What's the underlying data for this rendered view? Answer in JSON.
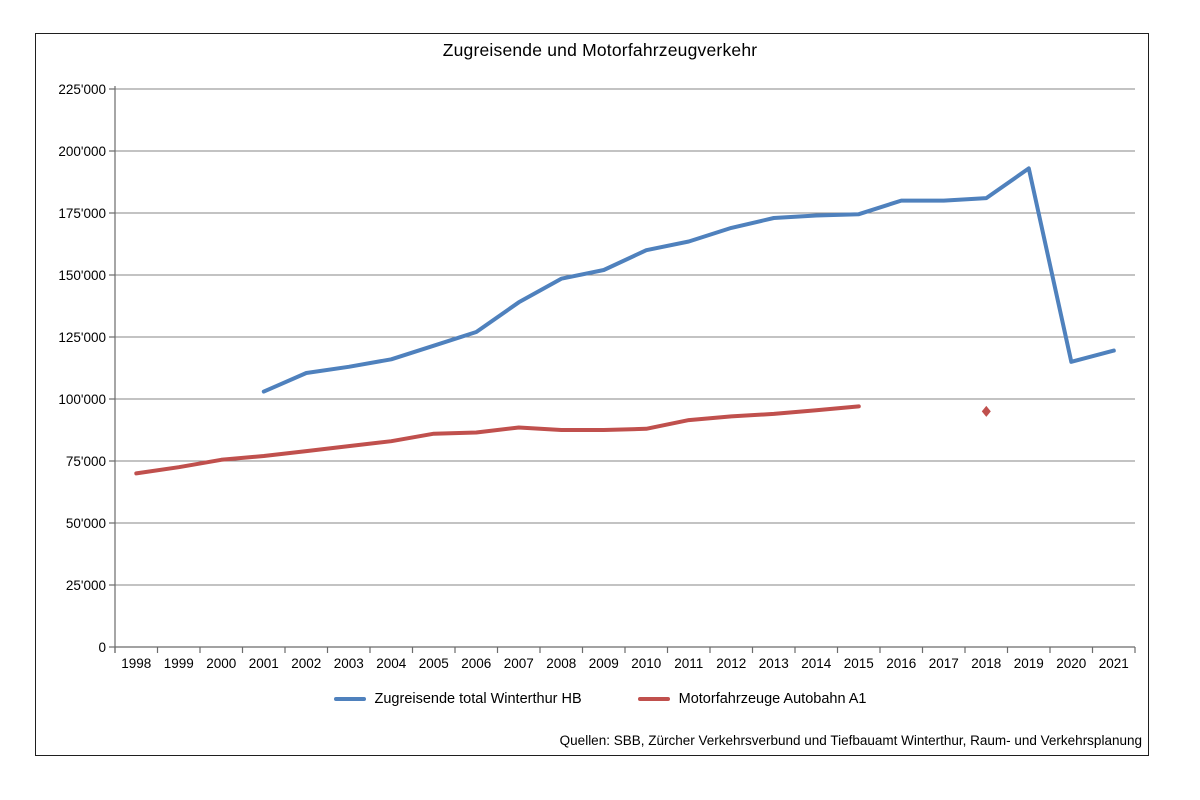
{
  "title": "Zugreisende und Motorfahrzeugverkehr",
  "source_note": "Quellen: SBB, Zürcher Verkehrsverbund und Tiefbauamt Winterthur, Raum- und Verkehrsplanung",
  "chart_data": {
    "type": "line",
    "title": "Zugreisende und Motorfahrzeugverkehr",
    "categories": [
      "1998",
      "1999",
      "2000",
      "2001",
      "2002",
      "2003",
      "2004",
      "2005",
      "2006",
      "2007",
      "2008",
      "2009",
      "2010",
      "2011",
      "2012",
      "2013",
      "2014",
      "2015",
      "2016",
      "2017",
      "2018",
      "2019",
      "2020",
      "2021"
    ],
    "series": [
      {
        "name": "Zugreisende total Winterthur HB",
        "color": "#4F81BD",
        "values": [
          null,
          null,
          null,
          103000,
          110500,
          113000,
          116000,
          121500,
          127000,
          139000,
          148500,
          152000,
          160000,
          163500,
          169000,
          173000,
          174000,
          174500,
          180000,
          180000,
          181000,
          193000,
          115000,
          119500
        ]
      },
      {
        "name": "Motorfahrzeuge Autobahn A1",
        "color": "#C0504D",
        "isolated_point_marker": "diamond",
        "values": [
          70000,
          72500,
          75500,
          77000,
          79000,
          81000,
          83000,
          86000,
          86500,
          88500,
          87500,
          87500,
          88000,
          91500,
          93000,
          94000,
          95500,
          97000,
          null,
          null,
          95000,
          null,
          null,
          null
        ]
      }
    ],
    "ylim": [
      0,
      225000
    ],
    "ytick_step": 25000,
    "y_tick_labels": [
      "0",
      "25'000",
      "50'000",
      "75'000",
      "100'000",
      "125'000",
      "150'000",
      "175'000",
      "200'000",
      "225'000"
    ],
    "grid": "horizontal",
    "legend_position": "bottom",
    "xlabel": "",
    "ylabel": "",
    "grid_color": "#878787",
    "axis_color": "#6b6b6b"
  }
}
